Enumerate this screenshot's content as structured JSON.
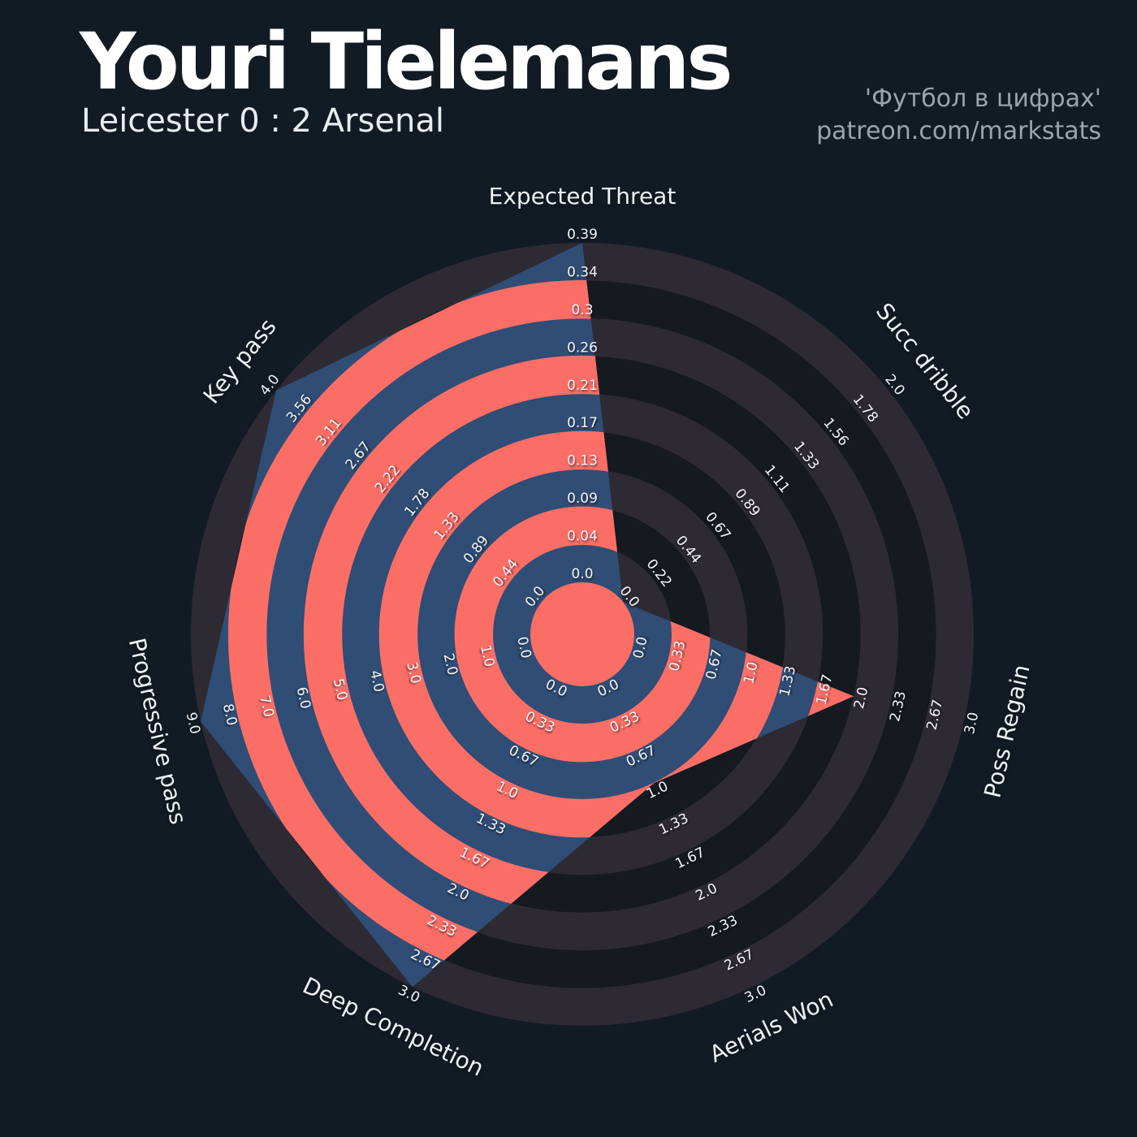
{
  "header": {
    "title": "Youri Tielemans",
    "subtitle": "Leicester 0 : 2 Arsenal",
    "credits": [
      "'Футбол в цифрах'",
      "patreon.com/markstats"
    ]
  },
  "chart_data": {
    "type": "radar",
    "title": "Youri Tielemans",
    "subtitle": "Leicester 0 : 2 Arsenal",
    "credits": [
      "'Футбол в цифрах'",
      "patreon.com/markstats"
    ],
    "rings": 9,
    "start_axis": "top",
    "direction": "clockwise",
    "params": [
      {
        "name": "Expected Threat",
        "min": 0,
        "max": 0.39,
        "value": 0.39,
        "ticks": [
          "0.0",
          "0.04",
          "0.09",
          "0.13",
          "0.17",
          "0.21",
          "0.26",
          "0.3",
          "0.34",
          "0.39"
        ]
      },
      {
        "name": "Succ dribble",
        "min": 0,
        "max": 2.0,
        "value": 0.0,
        "ticks": [
          "0.0",
          "0.22",
          "0.44",
          "0.67",
          "0.89",
          "1.11",
          "1.33",
          "1.56",
          "1.78",
          "2.0"
        ]
      },
      {
        "name": "Poss Regain",
        "min": 0,
        "max": 3.0,
        "value": 2.0,
        "ticks": [
          "0.0",
          "0.33",
          "0.67",
          "1.0",
          "1.33",
          "1.67",
          "2.0",
          "2.33",
          "2.67",
          "3.0"
        ]
      },
      {
        "name": "Aerials Won",
        "min": 0,
        "max": 3.0,
        "value": 1.0,
        "ticks": [
          "0.0",
          "0.33",
          "0.67",
          "1.0",
          "1.33",
          "1.67",
          "2.0",
          "2.33",
          "2.67",
          "3.0"
        ]
      },
      {
        "name": "Deep Completion",
        "min": 0,
        "max": 3.0,
        "value": 3.0,
        "ticks": [
          "0.0",
          "0.33",
          "0.67",
          "1.0",
          "1.33",
          "1.67",
          "2.0",
          "2.33",
          "2.67",
          "3.0"
        ]
      },
      {
        "name": "Progressive pass",
        "min": 0,
        "max": 9.0,
        "value": 9.0,
        "ticks": [
          "0.0",
          "1.0",
          "2.0",
          "3.0",
          "4.0",
          "5.0",
          "6.0",
          "7.0",
          "8.0",
          "9.0"
        ]
      },
      {
        "name": "Key pass",
        "min": 0,
        "max": 4.0,
        "value": 4.0,
        "ticks": [
          "0.0",
          "0.44",
          "0.89",
          "1.33",
          "1.78",
          "2.22",
          "2.67",
          "3.11",
          "3.56",
          "4.0"
        ]
      }
    ],
    "colors": {
      "background": "#121B24",
      "ring_light": "#2E2A33",
      "ring_dark": "#151920",
      "polygon_blue": "#2F4D75",
      "slice_salmon": "#FB6E66",
      "tick_text": "#F5F6F7",
      "axis_text": "#EFF2F3",
      "credit_text": "#9CA4AC"
    }
  }
}
